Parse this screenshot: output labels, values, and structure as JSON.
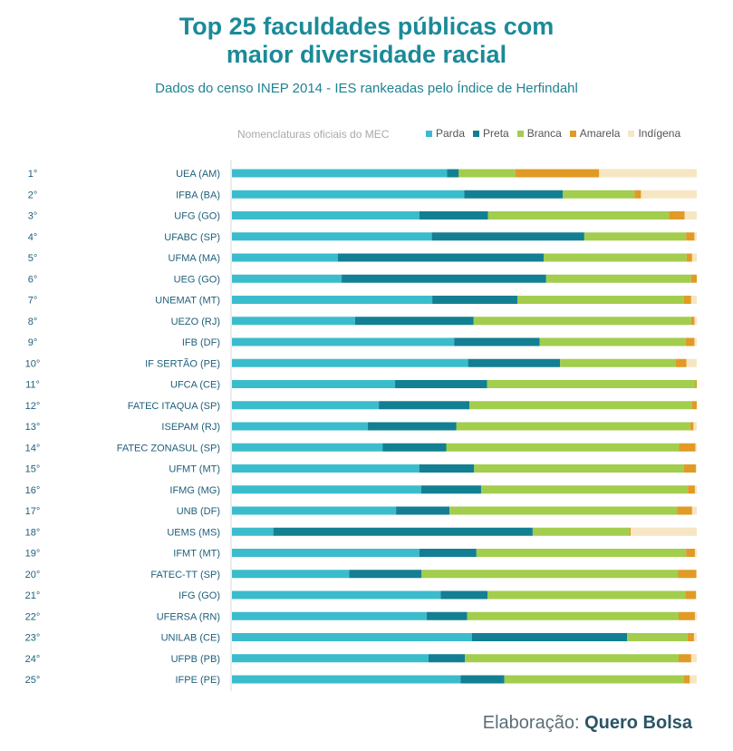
{
  "title_line1": "Top 25 faculdades públicas com",
  "title_line2": "maior diversidade racial",
  "subtitle": "Dados do censo INEP 2014 - IES rankeadas pelo Índice de Herfindahl",
  "legend_title": "Nomenclaturas oficiais do MEC",
  "footer_prefix": "Elaboração:",
  "footer_brand": "Quero Bolsa",
  "chart_data": {
    "type": "bar",
    "orientation": "horizontal",
    "stacked": true,
    "normalized_percent": true,
    "title": "Top 25 faculdades públicas com maior diversidade racial",
    "categories": [
      "UEA (AM)",
      "IFBA (BA)",
      "UFG (GO)",
      "UFABC (SP)",
      "UFMA (MA)",
      "UEG (GO)",
      "UNEMAT (MT)",
      "UEZO (RJ)",
      "IFB (DF)",
      "IF SERTÃO (PE)",
      "UFCA (CE)",
      "FATEC ITAQUA (SP)",
      "ISEPAM (RJ)",
      "FATEC ZONASUL (SP)",
      "UFMT (MT)",
      "IFMG (MG)",
      "UNB (DF)",
      "UEMS (MS)",
      "IFMT (MT)",
      "FATEC-TT (SP)",
      "IFG (GO)",
      "UFERSA (RN)",
      "UNILAB (CE)",
      "UFPB (PB)",
      "IFPE (PE)"
    ],
    "ranks": [
      "1°",
      "2°",
      "3°",
      "4°",
      "5°",
      "6°",
      "7°",
      "8°",
      "9°",
      "10°",
      "11°",
      "12°",
      "13°",
      "14°",
      "15°",
      "16°",
      "17°",
      "18°",
      "19°",
      "20°",
      "21°",
      "22°",
      "23°",
      "24°",
      "25°"
    ],
    "series": [
      {
        "name": "Parda",
        "color": "#3bbccc",
        "values": [
          46.3,
          50.0,
          40.3,
          43.0,
          22.8,
          23.6,
          43.1,
          26.5,
          47.8,
          50.8,
          35.1,
          31.6,
          29.2,
          32.4,
          40.3,
          40.7,
          35.3,
          8.9,
          40.3,
          25.2,
          44.9,
          41.9,
          51.6,
          42.3,
          49.2
        ]
      },
      {
        "name": "Preta",
        "color": "#137f92",
        "values": [
          2.5,
          21.2,
          14.8,
          32.8,
          44.3,
          44.0,
          18.3,
          25.5,
          18.4,
          19.8,
          19.8,
          19.5,
          19.1,
          13.7,
          11.8,
          12.9,
          11.5,
          55.8,
          12.3,
          15.6,
          10.1,
          8.7,
          33.4,
          7.8,
          9.4
        ]
      },
      {
        "name": "Branca",
        "color": "#a2cd4d",
        "values": [
          12.2,
          15.4,
          38.9,
          21.9,
          30.7,
          31.2,
          35.8,
          46.8,
          31.4,
          24.9,
          44.8,
          47.9,
          50.3,
          50.1,
          45.1,
          44.5,
          49.0,
          20.8,
          45.1,
          55.2,
          42.5,
          45.5,
          13.0,
          46.0,
          38.6
        ]
      },
      {
        "name": "Amarela",
        "color": "#e19a25",
        "values": [
          18.0,
          1.4,
          3.4,
          1.8,
          1.2,
          1.2,
          1.6,
          0.7,
          1.9,
          2.3,
          0.3,
          1.0,
          0.7,
          3.5,
          2.6,
          1.5,
          3.2,
          0.3,
          1.9,
          3.9,
          2.3,
          3.5,
          1.4,
          2.7,
          1.3
        ]
      },
      {
        "name": "Indígena",
        "color": "#f6e6c3",
        "values": [
          21.0,
          12.0,
          2.6,
          0.5,
          1.0,
          0.0,
          1.2,
          0.5,
          0.5,
          2.2,
          0.0,
          0.0,
          0.7,
          0.3,
          0.2,
          0.4,
          1.0,
          14.2,
          0.4,
          0.1,
          0.2,
          0.4,
          0.6,
          1.2,
          1.5
        ]
      }
    ],
    "xlim": [
      0,
      100
    ],
    "xlabel": "",
    "ylabel": "",
    "grid": false,
    "legend_position": "top"
  }
}
